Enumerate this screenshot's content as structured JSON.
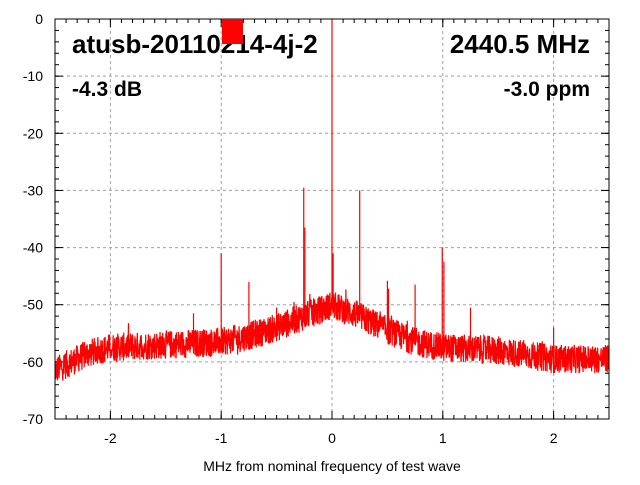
{
  "chart_data": {
    "type": "line",
    "title": "atusb-20110214-4j-2",
    "frequency_label": "2440.5 MHz",
    "level_label": "-4.3 dB",
    "ppm_label": "-3.0 ppm",
    "xlabel": "MHz from nominal frequency of test wave",
    "ylabel": "",
    "xlim": [
      -2.5,
      2.5
    ],
    "ylim": [
      -70,
      0
    ],
    "grid": true,
    "x_ticks": [
      -2,
      -1,
      0,
      1,
      2
    ],
    "x_tick_labels": [
      "-2",
      "-1",
      "0",
      "1",
      "2"
    ],
    "y_ticks": [
      0,
      -10,
      -20,
      -30,
      -40,
      -50,
      -60,
      -70
    ],
    "y_tick_labels": [
      "0",
      "-10",
      "-20",
      "-30",
      "-40",
      "-50",
      "-60",
      "-70"
    ],
    "series_color": "#ff0000",
    "noise_floor": {
      "x": [
        -2.5,
        -2.2,
        -2.0,
        -1.5,
        -1.0,
        -0.75,
        -0.5,
        -0.25,
        -0.05,
        0.0,
        0.05,
        0.25,
        0.5,
        0.75,
        1.0,
        1.5,
        2.0,
        2.5
      ],
      "y": [
        -61.5,
        -58.5,
        -57.5,
        -57,
        -56.5,
        -55.5,
        -54,
        -52,
        -50.5,
        -50,
        -50.5,
        -52,
        -54.5,
        -56.5,
        -57.5,
        -58,
        -59.5,
        -59.5
      ],
      "noise_amplitude_db": 2.5
    },
    "spikes": [
      {
        "x": -1.25,
        "y": -51.5
      },
      {
        "x": -1.0,
        "y": -41
      },
      {
        "x": -0.75,
        "y": -46
      },
      {
        "x": -0.5,
        "y": -50.5
      },
      {
        "x": -0.255,
        "y": -29.5
      },
      {
        "x": -0.245,
        "y": -36.5
      },
      {
        "x": 0.0,
        "y": 0
      },
      {
        "x": 0.005,
        "y": -43
      },
      {
        "x": 0.01,
        "y": -41
      },
      {
        "x": 0.25,
        "y": -30
      },
      {
        "x": 0.5,
        "y": -45.8
      },
      {
        "x": 0.51,
        "y": -47.2
      },
      {
        "x": 0.75,
        "y": -46.5
      },
      {
        "x": 0.995,
        "y": -40
      },
      {
        "x": 1.01,
        "y": -42.5
      },
      {
        "x": 1.25,
        "y": -50.5
      },
      {
        "x": 2.0,
        "y": -54
      }
    ],
    "marker_color": "#ff0000"
  }
}
